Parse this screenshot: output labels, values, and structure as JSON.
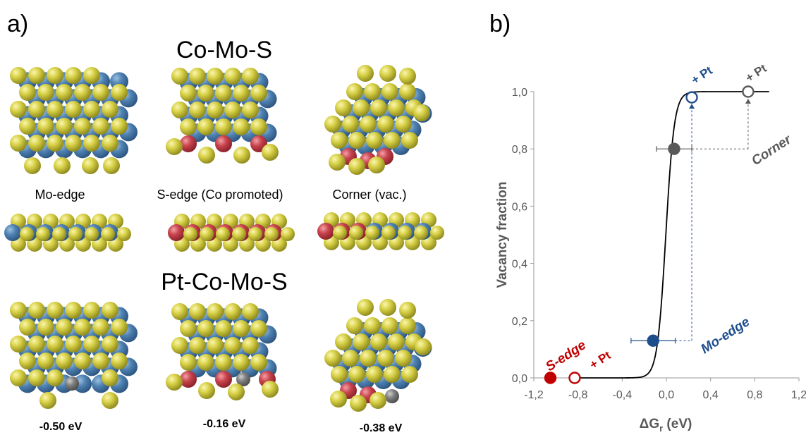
{
  "panel_a": {
    "label": "a)",
    "top_title": "Co-Mo-S",
    "bottom_title": "Pt-Co-Mo-S",
    "structures": [
      "Mo-edge",
      "S-edge (Co promoted)",
      "Corner (vac.)"
    ],
    "energies": [
      "-0.50 eV",
      "-0.16 eV",
      "-0.38 eV"
    ]
  },
  "panel_b": {
    "label": "b)",
    "annotations": {
      "s_edge": "S-edge",
      "mo_edge": "Mo-edge",
      "corner": "Corner",
      "pt_red": "+ Pt",
      "pt_blue": "+ Pt",
      "pt_gray": "+ Pt"
    }
  },
  "colors": {
    "sulfur": "#c9c23a",
    "molybdenum": "#4a7fb0",
    "cobalt": "#c03d47",
    "platinum": "#7a7a7a",
    "s_edge": "#c00000",
    "mo_edge": "#1f4e8c",
    "corner": "#595959"
  },
  "chart_data": {
    "type": "scatter",
    "title": "",
    "xlabel": "ΔGr (eV)",
    "ylabel": "Vacancy fraction",
    "xlim": [
      -1.2,
      1.2
    ],
    "ylim": [
      0,
      1.0
    ],
    "x_ticks": [
      "-1,2",
      "-0,8",
      "-0,4",
      "0,0",
      "0,4",
      "0,8",
      "1,2"
    ],
    "y_ticks": [
      "0,0",
      "0,2",
      "0,4",
      "0,6",
      "0,8",
      "1,0"
    ],
    "curve": {
      "type": "sigmoid",
      "x": [
        -0.85,
        -0.3,
        -0.1,
        0.0,
        0.05,
        0.1,
        0.2,
        0.93
      ],
      "y": [
        0.0,
        0.01,
        0.1,
        0.5,
        0.78,
        0.9,
        0.985,
        1.0
      ]
    },
    "series": [
      {
        "name": "S-edge",
        "points": [
          {
            "x": -1.05,
            "y": 0.0,
            "filled": true
          },
          {
            "x": -0.83,
            "y": 0.0,
            "filled": false
          }
        ]
      },
      {
        "name": "Mo-edge",
        "points": [
          {
            "x": -0.12,
            "y": 0.13,
            "filled": true,
            "xerr": 0.2
          },
          {
            "x": 0.23,
            "y": 0.98,
            "filled": false
          }
        ]
      },
      {
        "name": "Corner",
        "points": [
          {
            "x": 0.07,
            "y": 0.8,
            "filled": true,
            "xerr": 0.16
          },
          {
            "x": 0.74,
            "y": 1.0,
            "filled": false
          }
        ]
      }
    ]
  }
}
